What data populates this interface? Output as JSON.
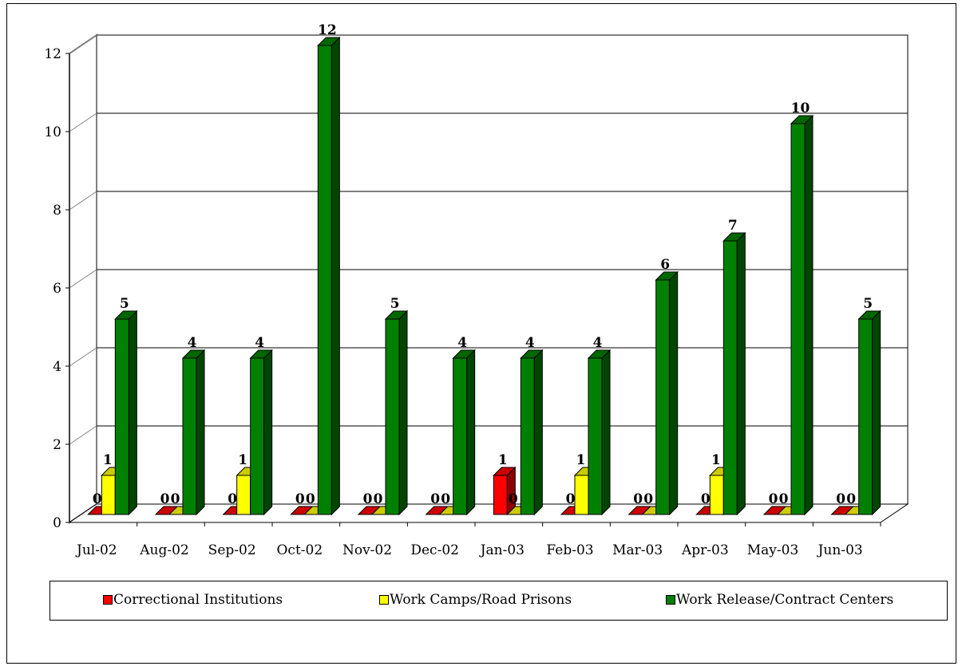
{
  "chart_data": {
    "type": "bar",
    "categories": [
      "Jul-02",
      "Aug-02",
      "Sep-02",
      "Oct-02",
      "Nov-02",
      "Dec-02",
      "Jan-03",
      "Feb-03",
      "Mar-03",
      "Apr-03",
      "May-03",
      "Jun-03"
    ],
    "series": [
      {
        "name": "Correctional Institutions",
        "values": [
          0,
          0,
          0,
          0,
          0,
          0,
          1,
          0,
          0,
          0,
          0,
          0
        ],
        "color": "#ff0000"
      },
      {
        "name": "Work Camps/Road Prisons",
        "values": [
          1,
          0,
          1,
          0,
          0,
          0,
          0,
          1,
          0,
          1,
          0,
          0
        ],
        "color": "#ffff00"
      },
      {
        "name": "Work Release/Contract Centers",
        "values": [
          5,
          4,
          4,
          12,
          5,
          4,
          4,
          4,
          6,
          7,
          10,
          5
        ],
        "color": "#008000"
      }
    ],
    "yticks": [
      0,
      2,
      4,
      6,
      8,
      10,
      12
    ],
    "ylim": [
      0,
      12
    ],
    "grid": true,
    "legend_position": "bottom"
  }
}
